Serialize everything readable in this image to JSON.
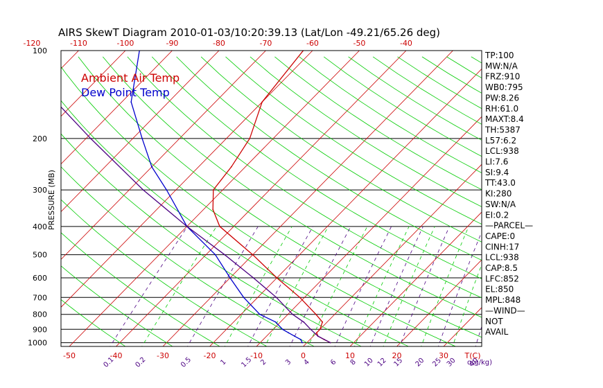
{
  "chart_data": {
    "type": "line",
    "title": "AIRS SkewT Diagram 2010-01-03/10:20:39.13 (Lat/Lon -49.21/65.26 deg)",
    "ylabel": "PRESSURE (MB)",
    "y_scale": "log",
    "ylim": [
      1000,
      100
    ],
    "pressure_ticks": [
      "100",
      "200",
      "300",
      "400",
      "500",
      "600",
      "700",
      "800",
      "900",
      "1000"
    ],
    "bottom_temp_ticks": [
      "-50",
      "-40",
      "-30",
      "-20",
      "-10",
      "0",
      "10",
      "20",
      "30"
    ],
    "top_temp_ticks": [
      "-120",
      "-110",
      "-100",
      "-90",
      "-80",
      "-70",
      "-60",
      "-50",
      "-40"
    ],
    "temp_unit_label": "T(C)",
    "mixing_ratio_ticks": [
      "0.1",
      "0.2",
      "0.5",
      "1",
      "1.5",
      "2",
      "3",
      "4",
      "6",
      "8",
      "10",
      "12",
      "15",
      "20",
      "25",
      "30",
      "40"
    ],
    "mixing_ratio_unit_label": "q(g/kg)",
    "legend": [
      {
        "label": "Ambient Air Temp",
        "color": "#cc0000"
      },
      {
        "label": "Dew Point Temp",
        "color": "#0000cc"
      }
    ],
    "series": [
      {
        "name": "Ambient Air Temp",
        "color": "#cc0000",
        "pressure": [
          1000,
          975,
          950,
          925,
          900,
          850,
          800,
          700,
          600,
          500,
          400,
          350,
          300,
          250,
          200,
          150,
          100
        ],
        "values": [
          5,
          3,
          1,
          0,
          0,
          -1,
          -4,
          -11,
          -20,
          -30,
          -43,
          -48,
          -52,
          -53,
          -55,
          -60,
          -62
        ]
      },
      {
        "name": "Dew Point Temp",
        "color": "#0000cc",
        "pressure": [
          1000,
          975,
          950,
          925,
          900,
          850,
          800,
          700,
          600,
          500,
          400,
          300,
          250,
          200,
          150,
          100
        ],
        "values": [
          -1,
          -2,
          -4,
          -6,
          -8,
          -11,
          -16,
          -23,
          -30,
          -38,
          -50,
          -62,
          -70,
          -78,
          -88,
          -97
        ]
      },
      {
        "name": "Parcel",
        "color": "#4b0082",
        "pressure": [
          1000,
          950,
          900,
          850,
          800,
          700,
          600,
          500,
          400,
          300,
          200,
          150,
          100
        ],
        "values": [
          5,
          1,
          -2,
          -5,
          -9,
          -16,
          -25,
          -36,
          -50,
          -67,
          -89,
          -104,
          -122
        ]
      }
    ],
    "grid": true
  },
  "side_panel": [
    "TP:100",
    "MW:N/A",
    "FRZ:910",
    "WB0:795",
    "PW:8.26",
    "RH:61.0",
    "MAXT:8.4",
    "TH:5387",
    "L57:6.2",
    "LCL:938",
    "LI:7.6",
    "SI:9.4",
    "TT:43.0",
    "KI:280",
    "SW:N/A",
    "EI:0.2",
    "—PARCEL—",
    "CAPE:0",
    "CINH:17",
    "LCL:938",
    "CAP:8.5",
    "LFC:852",
    "EL:850",
    "MPL:848",
    "—WIND—",
    "NOT",
    "AVAIL"
  ],
  "colors": {
    "dry_adiabat": "#cc0000",
    "moist_adiabat": "#00cc00",
    "mixing_ratio": "#00cc00",
    "saturation_mixing": "#4b0082",
    "isobar": "#000000"
  }
}
